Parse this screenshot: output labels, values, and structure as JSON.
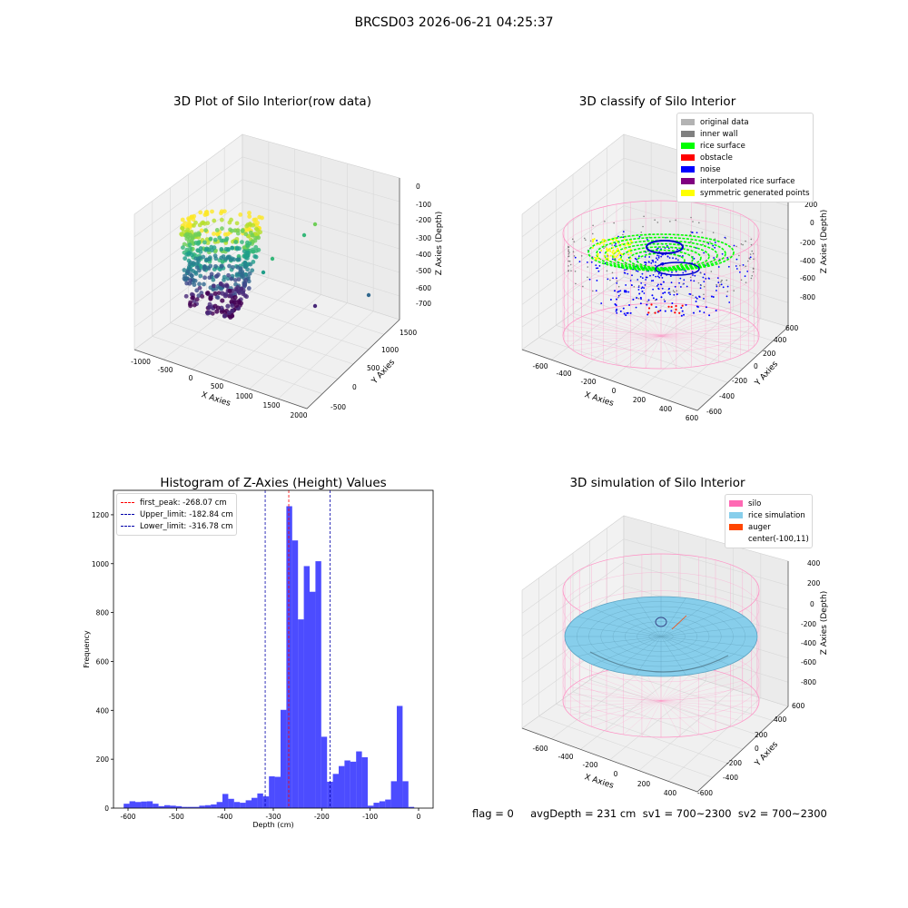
{
  "figure": {
    "suptitle": "BRCSD03 2026-06-21 04:25:37",
    "footer": "flag = 0     avgDepth = 231 cm  sv1 = 700~2300  sv2 = 700~2300"
  },
  "panels": {
    "raw": {
      "title": "3D Plot of Silo Interior(row data)",
      "xlabel": "X Axies",
      "ylabel": "Y Axies",
      "zlabel": "Z Axies (Depth)",
      "xticks": [
        "-1000",
        "-500",
        "0",
        "500",
        "1000",
        "1500",
        "2000"
      ],
      "yticks": [
        "-500",
        "0",
        "500",
        "1000",
        "1500"
      ],
      "zticks": [
        "0",
        "-100",
        "-200",
        "-300",
        "-400",
        "-500",
        "-600",
        "-700"
      ]
    },
    "classify": {
      "title": "3D classify of Silo Interior",
      "xlabel": "X Axies",
      "ylabel": "Y Axies",
      "zlabel": "Z Axies (Depth)",
      "xticks": [
        "-600",
        "-400",
        "-200",
        "0",
        "200",
        "400",
        "600"
      ],
      "yticks": [
        "-600",
        "-400",
        "-200",
        "0",
        "200",
        "400",
        "600"
      ],
      "zticks": [
        "200",
        "0",
        "-200",
        "-400",
        "-600",
        "-800"
      ],
      "legend": [
        {
          "label": "original data",
          "color": "#b3b3b3"
        },
        {
          "label": "inner wall",
          "color": "#808080"
        },
        {
          "label": "rice surface",
          "color": "#00ff00"
        },
        {
          "label": "obstacle",
          "color": "#ff0000"
        },
        {
          "label": "noise",
          "color": "#0000ff"
        },
        {
          "label": "interpolated rice surface",
          "color": "#800080"
        },
        {
          "label": "symmetric generated points",
          "color": "#ffff00"
        }
      ]
    },
    "histogram": {
      "title": "Histogram of Z-Axies (Height) Values",
      "xlabel": "Depth (cm)",
      "ylabel": "Frequency",
      "legend": [
        {
          "label": "first_peak: -268.07 cm",
          "color": "#ff0000"
        },
        {
          "label": "Upper_limit: -182.84 cm",
          "color": "#0000aa"
        },
        {
          "label": "Lower_limit: -316.78 cm",
          "color": "#0000aa"
        }
      ]
    },
    "simulation": {
      "title": "3D simulation of Silo Interior",
      "xlabel": "X Axies",
      "ylabel": "Y Axies",
      "zlabel": "Z Axies (Depth)",
      "xticks": [
        "-600",
        "-400",
        "-200",
        "0",
        "200",
        "400"
      ],
      "yticks": [
        "-600",
        "-400",
        "-200",
        "0",
        "200",
        "400",
        "600"
      ],
      "zticks": [
        "400",
        "200",
        "0",
        "-200",
        "-400",
        "-600",
        "-800"
      ],
      "legend": [
        {
          "label": "silo",
          "color": "#ff69b4"
        },
        {
          "label": "rice simulation",
          "color": "#87ceeb"
        },
        {
          "label": "auger",
          "color": "#ff4500"
        },
        {
          "label": "center(-100,11)",
          "color": ""
        }
      ]
    }
  },
  "chart_data": {
    "type": "bar",
    "title": "Histogram of Z-Axies (Height) Values",
    "xlabel": "Depth (cm)",
    "ylabel": "Frequency",
    "xlim": [
      -630,
      30
    ],
    "ylim": [
      0,
      1300
    ],
    "xticks": [
      -600,
      -500,
      -400,
      -300,
      -200,
      -100,
      0
    ],
    "yticks": [
      0,
      200,
      400,
      600,
      800,
      1000,
      1200
    ],
    "bar_color": "#0000ff",
    "bins": [
      {
        "x0": -609,
        "x1": -597,
        "value": 18
      },
      {
        "x0": -597,
        "x1": -585,
        "value": 28
      },
      {
        "x0": -585,
        "x1": -573,
        "value": 25
      },
      {
        "x0": -573,
        "x1": -561,
        "value": 27
      },
      {
        "x0": -561,
        "x1": -549,
        "value": 28
      },
      {
        "x0": -549,
        "x1": -537,
        "value": 18
      },
      {
        "x0": -537,
        "x1": -525,
        "value": 8
      },
      {
        "x0": -525,
        "x1": -513,
        "value": 12
      },
      {
        "x0": -513,
        "x1": -501,
        "value": 10
      },
      {
        "x0": -501,
        "x1": -489,
        "value": 8
      },
      {
        "x0": -489,
        "x1": -477,
        "value": 5
      },
      {
        "x0": -477,
        "x1": -465,
        "value": 5
      },
      {
        "x0": -465,
        "x1": -453,
        "value": 5
      },
      {
        "x0": -453,
        "x1": -441,
        "value": 10
      },
      {
        "x0": -441,
        "x1": -429,
        "value": 12
      },
      {
        "x0": -429,
        "x1": -417,
        "value": 15
      },
      {
        "x0": -417,
        "x1": -405,
        "value": 25
      },
      {
        "x0": -405,
        "x1": -393,
        "value": 58
      },
      {
        "x0": -393,
        "x1": -381,
        "value": 38
      },
      {
        "x0": -381,
        "x1": -369,
        "value": 25
      },
      {
        "x0": -369,
        "x1": -357,
        "value": 22
      },
      {
        "x0": -357,
        "x1": -345,
        "value": 32
      },
      {
        "x0": -345,
        "x1": -333,
        "value": 42
      },
      {
        "x0": -333,
        "x1": -321,
        "value": 60
      },
      {
        "x0": -321,
        "x1": -309,
        "value": 48
      },
      {
        "x0": -309,
        "x1": -297,
        "value": 130
      },
      {
        "x0": -297,
        "x1": -285,
        "value": 128
      },
      {
        "x0": -285,
        "x1": -273,
        "value": 402
      },
      {
        "x0": -273,
        "x1": -261,
        "value": 1235
      },
      {
        "x0": -261,
        "x1": -249,
        "value": 1095
      },
      {
        "x0": -249,
        "x1": -237,
        "value": 772
      },
      {
        "x0": -237,
        "x1": -225,
        "value": 990
      },
      {
        "x0": -225,
        "x1": -213,
        "value": 885
      },
      {
        "x0": -213,
        "x1": -201,
        "value": 1010
      },
      {
        "x0": -201,
        "x1": -189,
        "value": 292
      },
      {
        "x0": -189,
        "x1": -177,
        "value": 108
      },
      {
        "x0": -177,
        "x1": -165,
        "value": 140
      },
      {
        "x0": -165,
        "x1": -153,
        "value": 172
      },
      {
        "x0": -153,
        "x1": -141,
        "value": 195
      },
      {
        "x0": -141,
        "x1": -129,
        "value": 190
      },
      {
        "x0": -129,
        "x1": -117,
        "value": 232
      },
      {
        "x0": -117,
        "x1": -105,
        "value": 208
      },
      {
        "x0": -105,
        "x1": -93,
        "value": 10
      },
      {
        "x0": -93,
        "x1": -81,
        "value": 22
      },
      {
        "x0": -81,
        "x1": -69,
        "value": 28
      },
      {
        "x0": -69,
        "x1": -57,
        "value": 35
      },
      {
        "x0": -57,
        "x1": -45,
        "value": 110
      },
      {
        "x0": -45,
        "x1": -33,
        "value": 418
      },
      {
        "x0": -33,
        "x1": -21,
        "value": 110
      },
      {
        "x0": -21,
        "x1": -9,
        "value": 5
      }
    ],
    "vlines": [
      {
        "label": "first_peak: -268.07 cm",
        "x": -268.07,
        "color": "#ff0000"
      },
      {
        "label": "Upper_limit: -182.84 cm",
        "x": -182.84,
        "color": "#0000aa"
      },
      {
        "label": "Lower_limit: -316.78 cm",
        "x": -316.78,
        "color": "#0000aa"
      }
    ],
    "legend_position": "upper-left"
  }
}
